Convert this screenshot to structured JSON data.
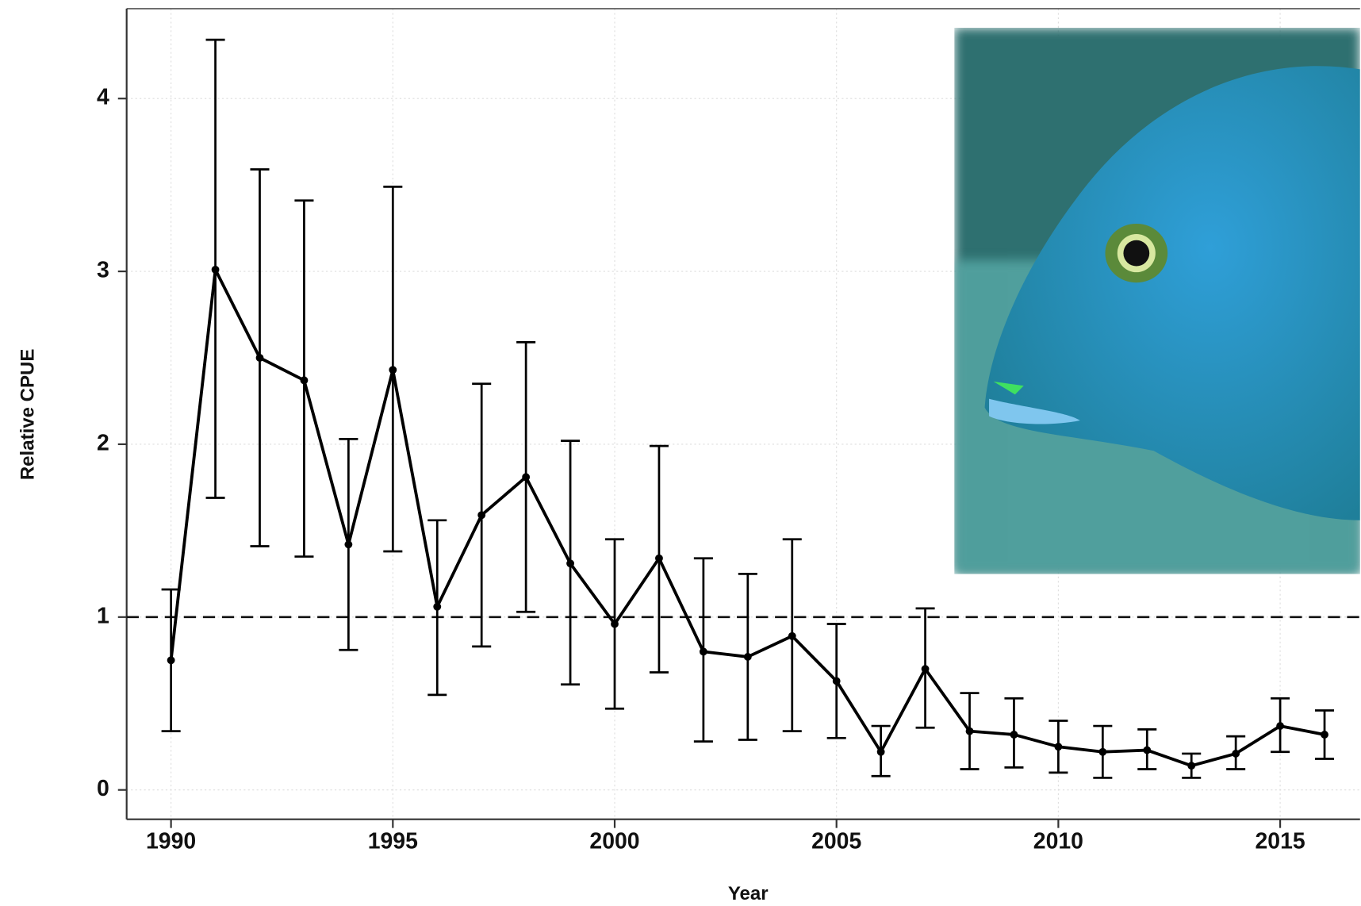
{
  "chart_data": {
    "type": "line",
    "x_label": "Year",
    "y_label": "Relative CPUE",
    "x": [
      1990,
      1991,
      1992,
      1993,
      1994,
      1995,
      1996,
      1997,
      1998,
      1999,
      2000,
      2001,
      2002,
      2003,
      2004,
      2005,
      2006,
      2007,
      2008,
      2009,
      2010,
      2011,
      2012,
      2013,
      2014,
      2015,
      2016
    ],
    "series": [
      {
        "color": "#000000",
        "values": [
          0.75,
          3.01,
          2.5,
          2.37,
          1.42,
          2.43,
          1.06,
          1.59,
          1.81,
          1.31,
          0.96,
          1.34,
          0.8,
          0.77,
          0.89,
          0.63,
          0.22,
          0.7,
          0.34,
          0.32,
          0.25,
          0.22,
          0.23,
          0.14,
          0.21,
          0.37,
          0.32
        ],
        "lower": [
          0.34,
          1.69,
          1.41,
          1.35,
          0.81,
          1.38,
          0.55,
          0.83,
          1.03,
          0.61,
          0.47,
          0.68,
          0.28,
          0.29,
          0.34,
          0.3,
          0.08,
          0.36,
          0.12,
          0.13,
          0.1,
          0.07,
          0.12,
          0.07,
          0.12,
          0.22,
          0.18
        ],
        "upper": [
          1.16,
          4.34,
          3.59,
          3.41,
          2.03,
          3.49,
          1.56,
          2.35,
          2.59,
          2.02,
          1.45,
          1.99,
          1.34,
          1.25,
          1.45,
          0.96,
          0.37,
          1.05,
          0.56,
          0.53,
          0.4,
          0.37,
          0.35,
          0.21,
          0.31,
          0.53,
          0.46
        ]
      }
    ],
    "reference_line": 1,
    "xlim": [
      1989,
      2016.8
    ],
    "xticks": [
      1990,
      1995,
      2000,
      2005,
      2010,
      2015
    ],
    "ylim": [
      -0.17,
      4.52
    ],
    "yticks": [
      0,
      1,
      2,
      3,
      4
    ],
    "grid": true
  }
}
